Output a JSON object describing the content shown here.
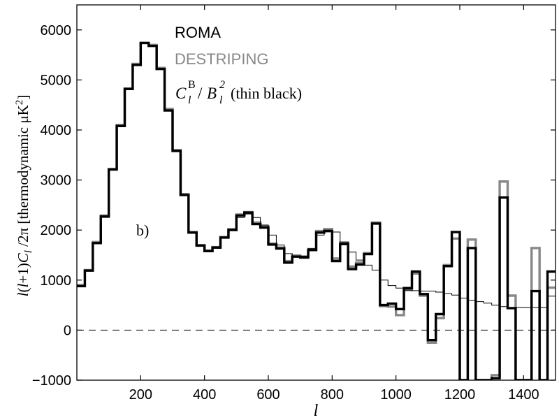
{
  "chart_data": {
    "type": "line",
    "title": "",
    "xlabel": "l",
    "ylabel": "l(l+1)C_l/2π [thermodynamic μK²]",
    "xlim": [
      0,
      1500
    ],
    "ylim": [
      -1000,
      6500
    ],
    "x_ticks": [
      200,
      400,
      600,
      800,
      1000,
      1200,
      1400
    ],
    "y_ticks": [
      -1000,
      0,
      1000,
      2000,
      3000,
      4000,
      5000,
      6000
    ],
    "annotation": "b)",
    "legend_position": "top-left",
    "bin_width": 25,
    "bin_starts": [
      0,
      25,
      50,
      75,
      100,
      125,
      150,
      175,
      200,
      225,
      250,
      275,
      300,
      325,
      350,
      375,
      400,
      425,
      450,
      475,
      500,
      525,
      550,
      575,
      600,
      625,
      650,
      675,
      700,
      725,
      750,
      775,
      800,
      825,
      850,
      875,
      900,
      925,
      950,
      975,
      1000,
      1025,
      1050,
      1075,
      1100,
      1125,
      1150,
      1175,
      1200,
      1225,
      1250,
      1275,
      1300,
      1325,
      1350,
      1375,
      1400,
      1425,
      1450,
      1475
    ],
    "series": [
      {
        "name": "ROMA",
        "color": "#000000",
        "style": "thick",
        "values": [
          880,
          1190,
          1740,
          2270,
          3210,
          4080,
          4820,
          5300,
          5740,
          5680,
          5220,
          4390,
          3580,
          2700,
          1950,
          1690,
          1580,
          1650,
          1850,
          2000,
          2290,
          2350,
          2120,
          2050,
          1710,
          1630,
          1350,
          1470,
          1450,
          1600,
          1950,
          1980,
          1380,
          1720,
          1220,
          1310,
          1520,
          2130,
          500,
          530,
          420,
          840,
          1170,
          720,
          -200,
          320,
          1280,
          1960,
          -1050,
          1640,
          -1050,
          -1050,
          -960,
          2650,
          440,
          -1050,
          -1050,
          780,
          -1050,
          1170
        ]
      },
      {
        "name": "DESTRIPING",
        "color": "#888888",
        "style": "thick",
        "values": [
          900,
          1200,
          1760,
          2290,
          3220,
          4100,
          4830,
          5320,
          5740,
          5700,
          5240,
          4420,
          3600,
          2720,
          1960,
          1700,
          1590,
          1660,
          1860,
          2020,
          2310,
          2360,
          2150,
          2070,
          1730,
          1650,
          1380,
          1490,
          1470,
          1620,
          1980,
          2020,
          1430,
          1750,
          1270,
          1350,
          1540,
          2150,
          480,
          470,
          300,
          800,
          1130,
          690,
          -250,
          240,
          1300,
          1830,
          -1050,
          1810,
          -1050,
          -1050,
          -900,
          2970,
          690,
          -1050,
          -1050,
          1640,
          -1050,
          850
        ]
      },
      {
        "name": "C_l^B/B_l^2 (thin black)",
        "color": "#000000",
        "style": "thin",
        "values": [
          890,
          1200,
          1750,
          2280,
          3210,
          4080,
          4820,
          5300,
          5740,
          5690,
          5230,
          4400,
          3590,
          2700,
          1960,
          1690,
          1590,
          1660,
          1860,
          2010,
          2250,
          2320,
          2250,
          2100,
          1900,
          1700,
          1530,
          1470,
          1480,
          1630,
          1900,
          2000,
          1960,
          1760,
          1560,
          1400,
          1300,
          1200,
          1000,
          890,
          840,
          800,
          790,
          780,
          780,
          760,
          730,
          700,
          640,
          600,
          570,
          540,
          500,
          470,
          450,
          450,
          450,
          450,
          450,
          680
        ]
      }
    ]
  },
  "legend": {
    "roma": "ROMA",
    "destriping": "DESTRIPING",
    "formula_suffix": "(thin black)"
  }
}
